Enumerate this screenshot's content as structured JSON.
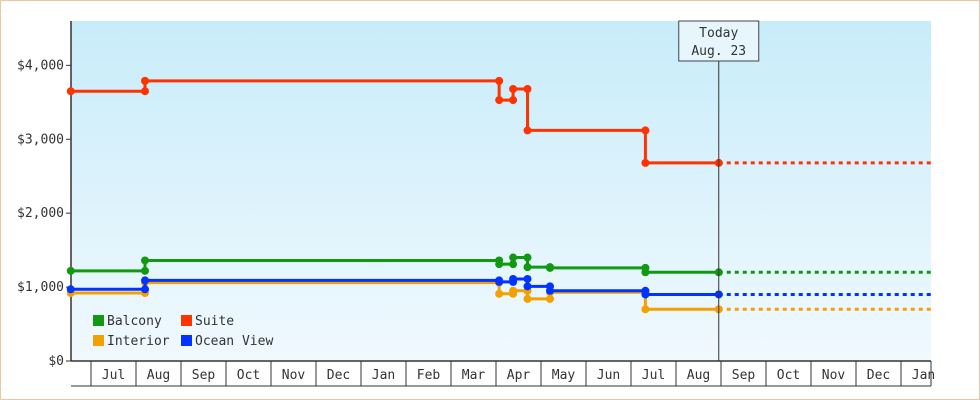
{
  "chart_data": {
    "type": "line",
    "step": true,
    "y_axis": {
      "min": 0,
      "max": 4600,
      "ticks": [
        0,
        1000,
        2000,
        3000,
        4000
      ],
      "tick_labels": [
        "$0",
        "$1,000",
        "$2,000",
        "$3,000",
        "$4,000"
      ]
    },
    "x_axis": {
      "months": [
        "Jul",
        "Aug",
        "Sep",
        "Oct",
        "Nov",
        "Dec",
        "Jan",
        "Feb",
        "Mar",
        "Apr",
        "May",
        "Jun",
        "Jul",
        "Aug",
        "Sep",
        "Oct",
        "Nov",
        "Dec",
        "Jan"
      ]
    },
    "today": {
      "line1": "Today",
      "line2": "Aug. 23",
      "x": 13.95
    },
    "legend": {
      "placement": "bottom-left"
    },
    "series": [
      {
        "name": "Suite",
        "color": "#ff3300",
        "points": [
          [
            -0.45,
            3650
          ],
          [
            1.2,
            3650
          ],
          [
            1.2,
            3790
          ],
          [
            9.07,
            3790
          ],
          [
            9.07,
            3530
          ],
          [
            9.38,
            3530
          ],
          [
            9.38,
            3680
          ],
          [
            9.7,
            3680
          ],
          [
            9.7,
            3120
          ],
          [
            12.32,
            3120
          ],
          [
            12.32,
            2680
          ],
          [
            13.95,
            2680
          ]
        ],
        "forecast": 2680
      },
      {
        "name": "Balcony",
        "color": "#119911",
        "points": [
          [
            -0.45,
            1220
          ],
          [
            1.2,
            1220
          ],
          [
            1.2,
            1360
          ],
          [
            9.07,
            1360
          ],
          [
            9.07,
            1310
          ],
          [
            9.38,
            1310
          ],
          [
            9.38,
            1400
          ],
          [
            9.7,
            1400
          ],
          [
            9.7,
            1270
          ],
          [
            10.2,
            1270
          ],
          [
            10.2,
            1260
          ],
          [
            12.32,
            1260
          ],
          [
            12.32,
            1200
          ],
          [
            13.95,
            1200
          ]
        ],
        "forecast": 1200
      },
      {
        "name": "Interior",
        "color": "#f2a100",
        "points": [
          [
            -0.45,
            920
          ],
          [
            1.2,
            920
          ],
          [
            1.2,
            1060
          ],
          [
            9.07,
            1060
          ],
          [
            9.07,
            910
          ],
          [
            9.38,
            910
          ],
          [
            9.38,
            950
          ],
          [
            9.7,
            950
          ],
          [
            9.7,
            840
          ],
          [
            10.2,
            840
          ],
          [
            10.2,
            930
          ],
          [
            12.32,
            930
          ],
          [
            12.32,
            700
          ],
          [
            13.95,
            700
          ]
        ],
        "forecast": 700
      },
      {
        "name": "Ocean View",
        "color": "#0033ff",
        "points": [
          [
            -0.45,
            970
          ],
          [
            1.2,
            970
          ],
          [
            1.2,
            1090
          ],
          [
            9.07,
            1090
          ],
          [
            9.07,
            1070
          ],
          [
            9.38,
            1070
          ],
          [
            9.38,
            1110
          ],
          [
            9.7,
            1110
          ],
          [
            9.7,
            1010
          ],
          [
            10.2,
            1010
          ],
          [
            10.2,
            950
          ],
          [
            12.32,
            950
          ],
          [
            12.32,
            900
          ],
          [
            13.95,
            900
          ]
        ],
        "forecast": 900
      }
    ]
  }
}
